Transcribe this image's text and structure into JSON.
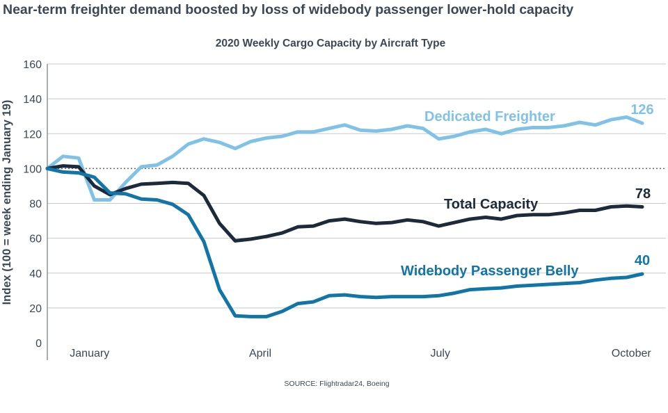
{
  "chart_data": {
    "type": "line",
    "title": "Near-term freighter demand boosted by loss of widebody passenger lower-hold capacity",
    "subtitle": "2020 Weekly Cargo Capacity by Aircraft Type",
    "ylabel": "Index (100 = week ending January 19)",
    "xlabel": "",
    "ylim": [
      0,
      160
    ],
    "yticks": [
      0,
      20,
      40,
      60,
      80,
      100,
      120,
      140,
      160
    ],
    "reference_line": 100,
    "grid": true,
    "xlim": [
      0,
      38
    ],
    "xticks": [
      {
        "label": "January",
        "at": 2.7
      },
      {
        "label": "April",
        "at": 13.6
      },
      {
        "label": "July",
        "at": 25.1
      },
      {
        "label": "October",
        "at": 37.3
      }
    ],
    "series": [
      {
        "name": "Dedicated Freighter",
        "end_label": "126",
        "color": "#80c2e7",
        "values": [
          100,
          107,
          106,
          82,
          82,
          92,
          101,
          102,
          107,
          114,
          117,
          115,
          111.5,
          115.5,
          117.5,
          118.5,
          121,
          121,
          123,
          125,
          122,
          121.5,
          122.5,
          124.5,
          123,
          117,
          118.5,
          121,
          122.5,
          120,
          122.5,
          123.5,
          123.5,
          124.5,
          126.5,
          125,
          128,
          129.5,
          126
        ]
      },
      {
        "name": "Total Capacity",
        "end_label": "78",
        "color": "#1c2a39",
        "values": [
          100,
          101.5,
          101,
          90,
          85,
          88.5,
          91,
          91.5,
          92,
          91.5,
          84.5,
          68.5,
          58.5,
          59.5,
          61,
          63,
          66.5,
          67,
          70,
          71,
          69.5,
          68.5,
          69,
          70.5,
          69.5,
          67,
          69,
          71,
          72,
          71,
          73,
          73.5,
          73.5,
          74.5,
          76,
          76,
          78,
          78.5,
          78
        ]
      },
      {
        "name": "Widebody Passenger Belly",
        "end_label": "40",
        "color": "#1275a7",
        "values": [
          100,
          98,
          97.5,
          95,
          86,
          85.5,
          82.5,
          82,
          79.5,
          73.5,
          58,
          30.5,
          15.5,
          15,
          15,
          18,
          22.5,
          23.5,
          27,
          27.5,
          26.5,
          26,
          26.5,
          26.5,
          26.5,
          27,
          28.5,
          30.5,
          31,
          31.5,
          32.5,
          33,
          33.5,
          34,
          34.5,
          36,
          37,
          37.5,
          39.5
        ]
      }
    ],
    "source": "SOURCE: Flightradar24, Boeing"
  }
}
